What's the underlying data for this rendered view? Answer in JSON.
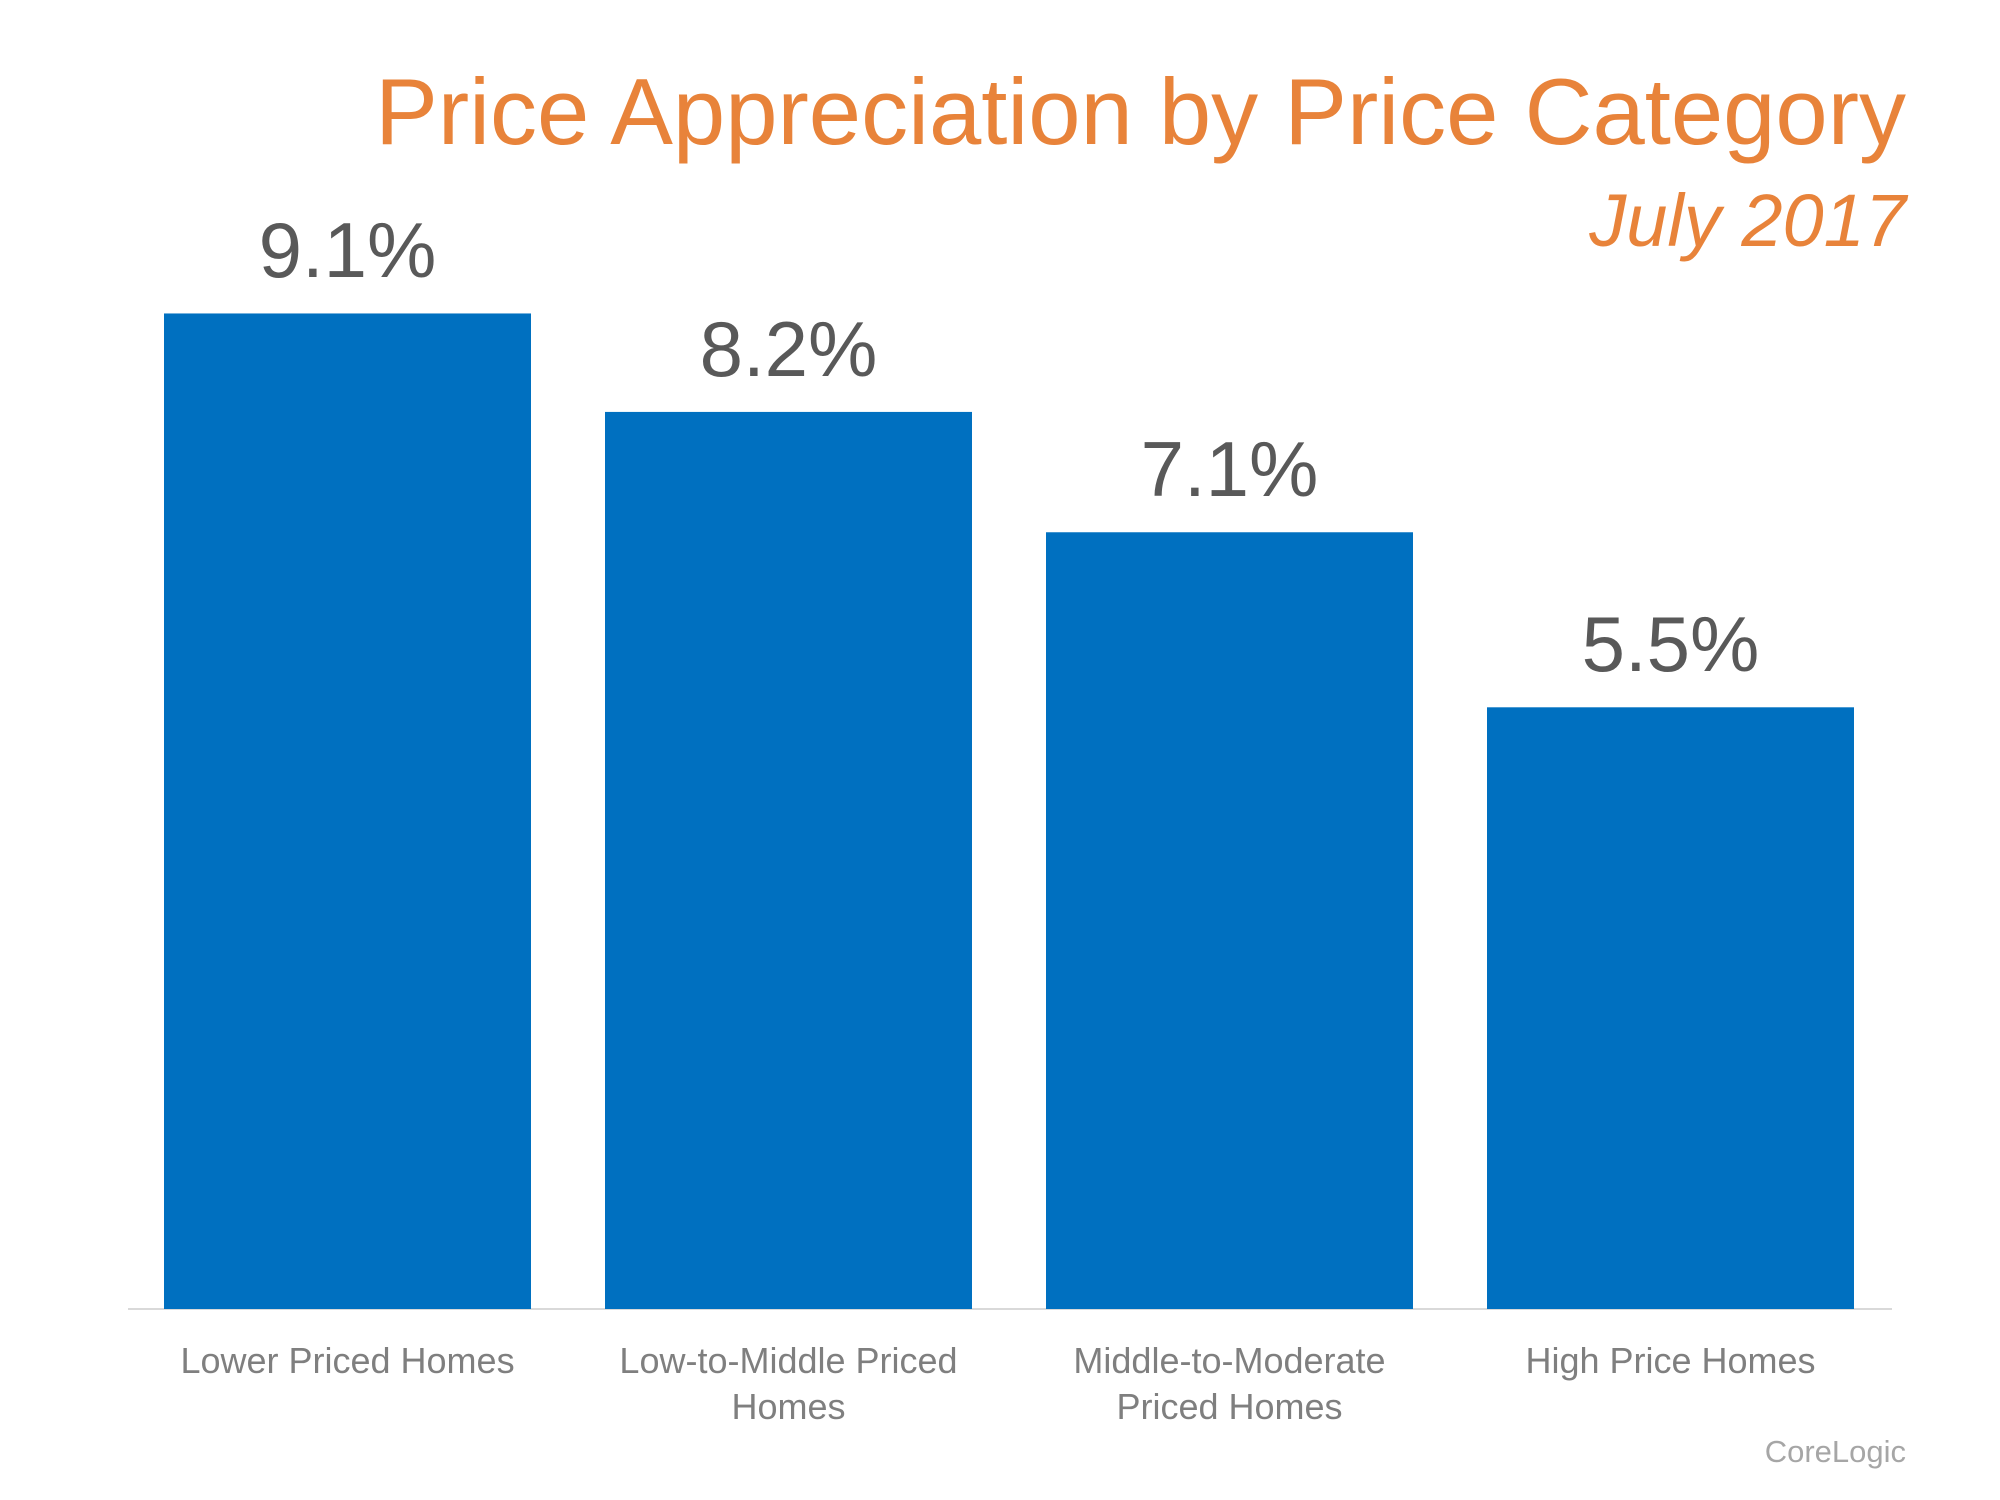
{
  "chart_data": {
    "type": "bar",
    "title": "Price Appreciation by Price Category",
    "subtitle": "July 2017",
    "source": "CoreLogic",
    "categories": [
      "Lower Priced Homes",
      "Low-to-Middle Priced Homes",
      "Middle-to-Moderate Priced Homes",
      "High Price Homes"
    ],
    "values": [
      9.1,
      8.2,
      7.1,
      5.5
    ],
    "value_labels": [
      "9.1%",
      "8.2%",
      "7.1%",
      "5.5%"
    ],
    "color": "#0070C0"
  }
}
